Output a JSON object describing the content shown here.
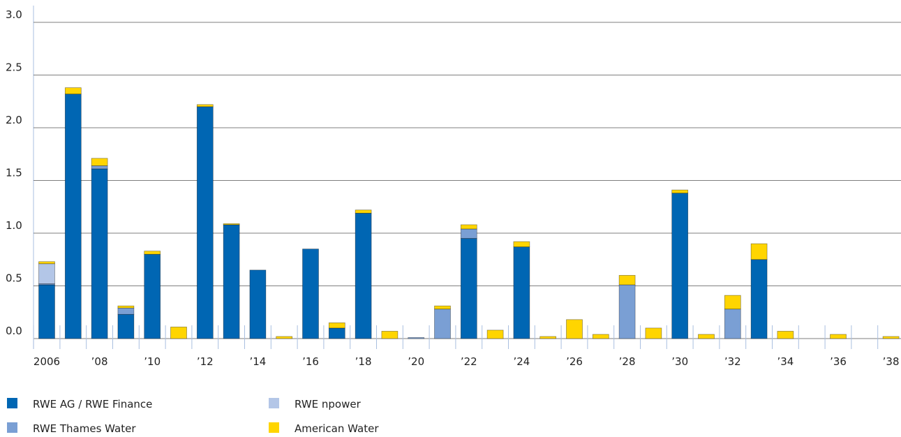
{
  "chart_data": {
    "type": "bar",
    "stacked": true,
    "categories": [
      "2006",
      null,
      "’08",
      null,
      "’10",
      null,
      "’12",
      null,
      "’14",
      null,
      "’16",
      null,
      "’18",
      null,
      "’20",
      null,
      "’22",
      null,
      "’24",
      null,
      "’26",
      null,
      "’28",
      null,
      "’30",
      null,
      "’32",
      null,
      "’34",
      null,
      "’36",
      null,
      "’38"
    ],
    "series": [
      {
        "name": "RWE AG / RWE Finance",
        "color": "#0066b3",
        "values": [
          0.51,
          2.32,
          1.61,
          0.23,
          0.8,
          0,
          2.2,
          1.08,
          0.65,
          0,
          0.85,
          0.1,
          1.19,
          0,
          0,
          0,
          0.95,
          0,
          0.87,
          0,
          0,
          0,
          0,
          0,
          1.38,
          0,
          0,
          0.75,
          0,
          0,
          0,
          0,
          0
        ]
      },
      {
        "name": "RWE Thames Water",
        "color": "#7a9fd4",
        "values": [
          0.01,
          0,
          0.03,
          0.06,
          0,
          0,
          0,
          0,
          0,
          0,
          0,
          0,
          0,
          0,
          0.01,
          0.28,
          0.09,
          0,
          0,
          0,
          0,
          0,
          0.51,
          0,
          0,
          0,
          0.28,
          0,
          0,
          0,
          0,
          0,
          0
        ]
      },
      {
        "name": "RWE npower",
        "color": "#b3c6e7",
        "values": [
          0.19,
          0,
          0,
          0,
          0,
          0,
          0,
          0,
          0,
          0,
          0,
          0,
          0,
          0,
          0,
          0,
          0,
          0,
          0,
          0,
          0,
          0,
          0,
          0,
          0,
          0,
          0,
          0,
          0,
          0,
          0,
          0,
          0
        ]
      },
      {
        "name": "American Water",
        "color": "#ffd500",
        "values": [
          0.02,
          0.06,
          0.07,
          0.02,
          0.03,
          0.11,
          0.02,
          0.01,
          0,
          0.02,
          0,
          0.05,
          0.03,
          0.07,
          0,
          0.03,
          0.04,
          0.08,
          0.05,
          0.02,
          0.18,
          0.04,
          0.09,
          0.1,
          0.03,
          0.04,
          0.13,
          0.15,
          0.07,
          0,
          0.04,
          0,
          0.02
        ]
      }
    ],
    "ylim": [
      0,
      3.0
    ],
    "yticks": [
      {
        "value": 0,
        "label": "0.0"
      },
      0.5,
      {
        "value": 1,
        "label": "1.0"
      },
      1.5,
      {
        "value": 2,
        "label": "2.0"
      },
      2.5,
      {
        "value": 3,
        "label": "3.0"
      }
    ],
    "grid": true
  }
}
